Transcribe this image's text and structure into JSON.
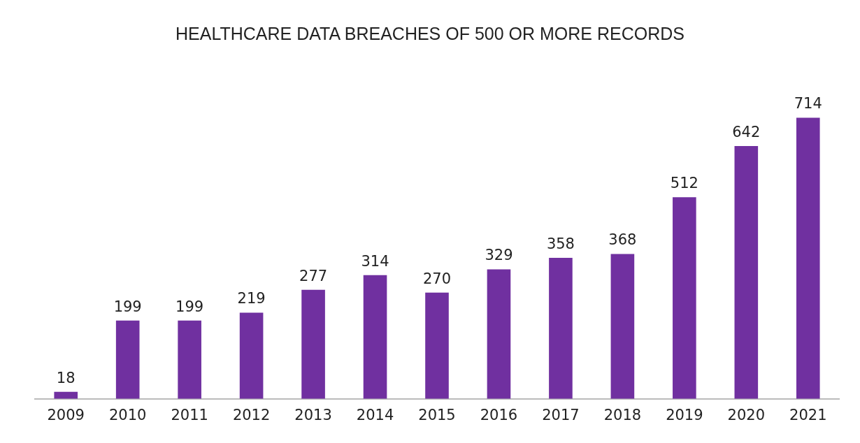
{
  "chart_data": {
    "type": "bar",
    "title": "HEALTHCARE DATA BREACHES OF 500 OR MORE RECORDS",
    "categories": [
      "2009",
      "2010",
      "2011",
      "2012",
      "2013",
      "2014",
      "2015",
      "2016",
      "2017",
      "2018",
      "2019",
      "2020",
      "2021"
    ],
    "values": [
      18,
      199,
      199,
      219,
      277,
      314,
      270,
      329,
      358,
      368,
      512,
      642,
      714
    ],
    "color": "#7030a0",
    "data_labels": true,
    "grid": false,
    "legend": false
  }
}
